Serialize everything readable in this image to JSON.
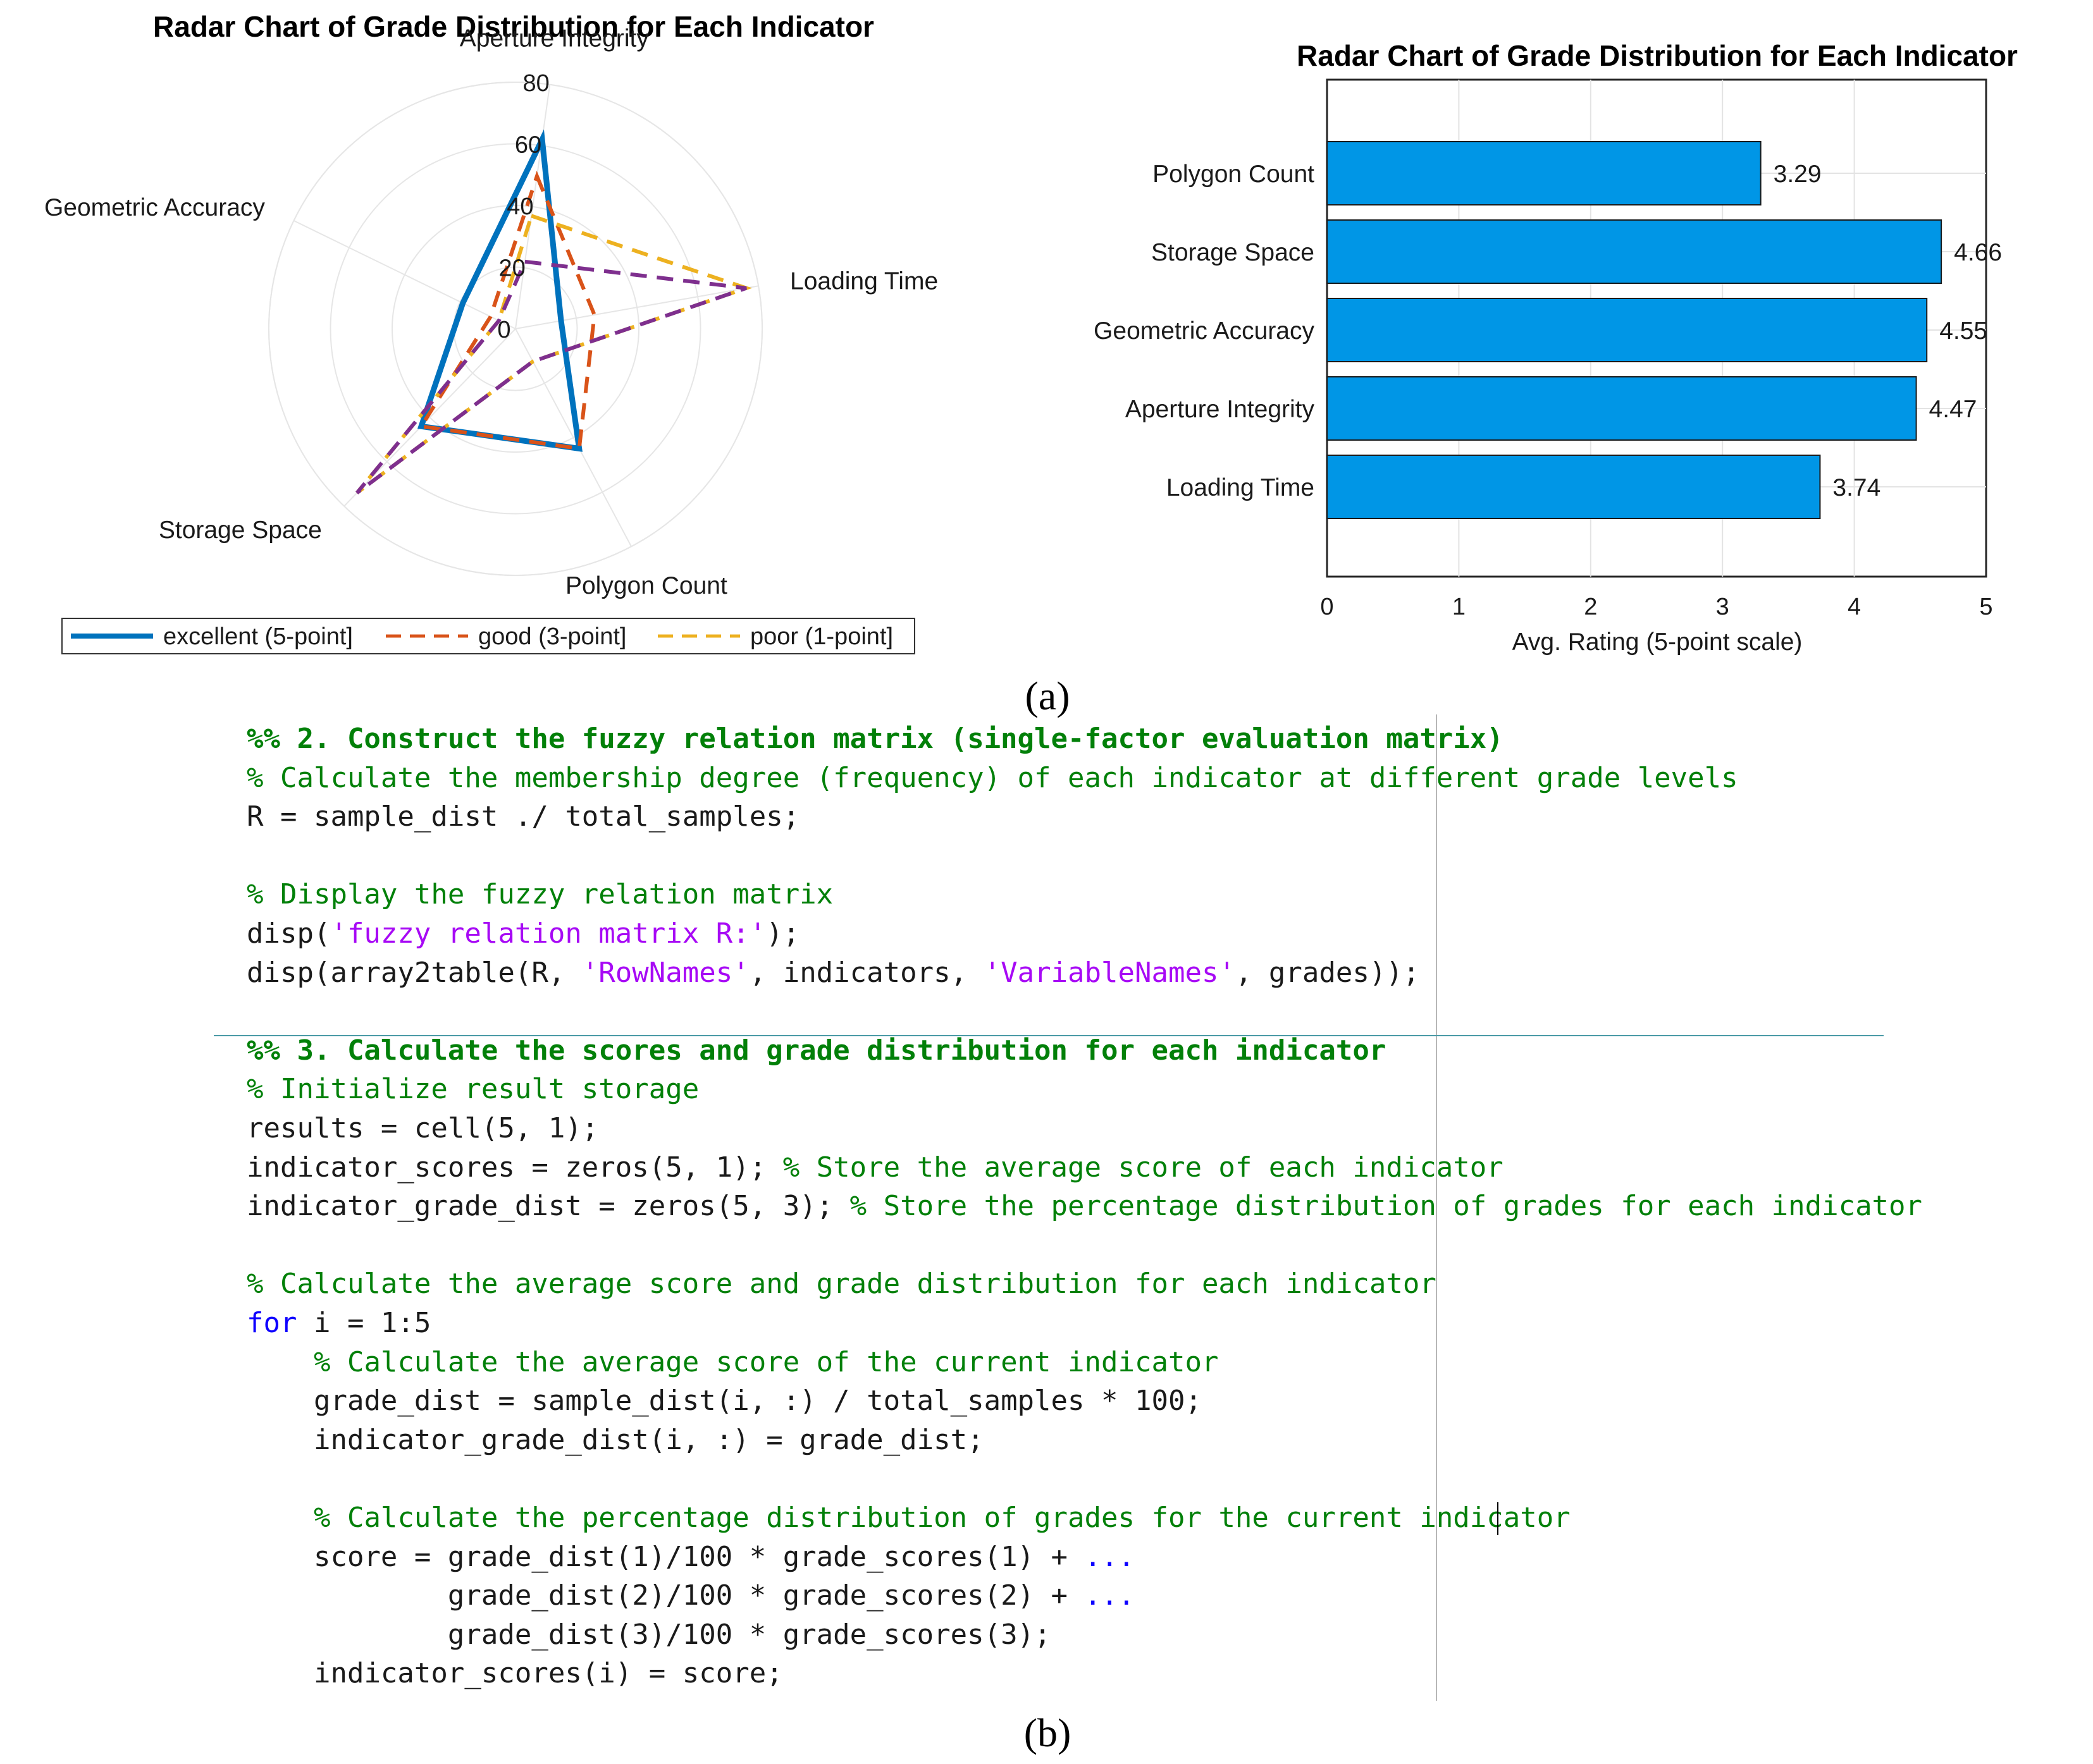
{
  "panel_a_label": "(a)",
  "panel_b_label": "(b)",
  "chart_data": [
    {
      "type": "radar",
      "title": "Radar Chart of Grade Distribution for Each Indicator",
      "axes": [
        "Aperture Integrity",
        "Loading Time",
        "Polygon Count",
        "Storage Space",
        "Geometric Accuracy"
      ],
      "rlim": [
        0,
        80
      ],
      "rticks": [
        0,
        20,
        40,
        60,
        80
      ],
      "rtick_labels": [
        "0",
        "20",
        "40",
        "60",
        "80"
      ],
      "grid": true,
      "legend_placement": "bottom",
      "series": [
        {
          "name": "excellent (5-point]",
          "values": [
            62,
            15,
            44,
            44,
            19
          ],
          "color": "#0072bd",
          "style": "solid"
        },
        {
          "name": "good (3-point]",
          "values": [
            50,
            26,
            44,
            44,
            9
          ],
          "color": "#d95319",
          "style": "dashed"
        },
        {
          "name": "poor (1-point]",
          "values": [
            37,
            76,
            12,
            74,
            6
          ],
          "color": "#edb120",
          "style": "dashed"
        },
        {
          "name": "",
          "values": [
            22,
            76,
            12,
            74,
            6
          ],
          "color": "#7e2f8e",
          "style": "dashed"
        }
      ]
    },
    {
      "type": "bar",
      "orientation": "horizontal",
      "title": "Radar Chart of Grade Distribution for Each Indicator",
      "categories": [
        "Loading Time",
        "Aperture Integrity",
        "Geometric Accuracy",
        "Storage Space",
        "Polygon Count"
      ],
      "values": [
        3.74,
        4.47,
        4.55,
        4.66,
        3.29
      ],
      "value_labels": [
        "3.74",
        "4.47",
        "4.55",
        "4.66",
        "3.29"
      ],
      "xlabel": "Avg. Rating (5-point scale)",
      "ylabel": "",
      "xlim": [
        0,
        5
      ],
      "xticks": [
        "0",
        "1",
        "2",
        "3",
        "4",
        "5"
      ],
      "grid": true,
      "bar_color": "#0096e6"
    }
  ],
  "code": {
    "lines": [
      {
        "indent": 0,
        "section": true,
        "parts": [
          {
            "t": "%% 2. Construct the fuzzy relation matrix (single-factor evaluation matrix)",
            "c": "cm"
          }
        ]
      },
      {
        "indent": 0,
        "parts": [
          {
            "t": "% Calculate the membership degree (frequency) of each indicator at different grade levels",
            "c": "cm"
          }
        ]
      },
      {
        "indent": 0,
        "parts": [
          {
            "t": "R = sample_dist ./ total_samples;",
            "c": ""
          }
        ]
      },
      {
        "indent": 0,
        "parts": []
      },
      {
        "indent": 0,
        "parts": [
          {
            "t": "% Display the fuzzy relation matrix",
            "c": "cm"
          }
        ]
      },
      {
        "indent": 0,
        "parts": [
          {
            "t": "disp(",
            "c": ""
          },
          {
            "t": "'fuzzy relation matrix R:'",
            "c": "st"
          },
          {
            "t": ");",
            "c": ""
          }
        ]
      },
      {
        "indent": 0,
        "parts": [
          {
            "t": "disp(array2table(R, ",
            "c": ""
          },
          {
            "t": "'RowNames'",
            "c": "st"
          },
          {
            "t": ", indicators, ",
            "c": ""
          },
          {
            "t": "'VariableNames'",
            "c": "st"
          },
          {
            "t": ", grades));",
            "c": ""
          }
        ]
      },
      {
        "indent": 0,
        "parts": []
      },
      {
        "indent": 0,
        "section": true,
        "parts": [
          {
            "t": "%% 3. Calculate the scores and grade distribution for each indicator",
            "c": "cm"
          }
        ]
      },
      {
        "indent": 0,
        "parts": [
          {
            "t": "% Initialize result storage",
            "c": "cm"
          }
        ]
      },
      {
        "indent": 0,
        "parts": [
          {
            "t": "results = cell(5, 1);",
            "c": ""
          }
        ]
      },
      {
        "indent": 0,
        "parts": [
          {
            "t": "indicator_scores = zeros(5, 1); ",
            "c": ""
          },
          {
            "t": "% Store the average score of each indicator",
            "c": "cm"
          }
        ]
      },
      {
        "indent": 0,
        "parts": [
          {
            "t": "indicator_grade_dist = zeros(5, 3); ",
            "c": ""
          },
          {
            "t": "% Store the percentage distribution of grades for each indicator",
            "c": "cm"
          }
        ]
      },
      {
        "indent": 0,
        "parts": []
      },
      {
        "indent": 0,
        "parts": [
          {
            "t": "% Calculate the average score and grade distribution for each indicator",
            "c": "cm"
          }
        ]
      },
      {
        "indent": 0,
        "parts": [
          {
            "t": "for",
            "c": "kw"
          },
          {
            "t": " i = 1:5",
            "c": ""
          }
        ]
      },
      {
        "indent": 4,
        "parts": [
          {
            "t": "% Calculate the average score of the current indicator",
            "c": "cm"
          }
        ]
      },
      {
        "indent": 4,
        "parts": [
          {
            "t": "grade_dist = sample_dist(i, :) / total_samples * 100;",
            "c": ""
          }
        ]
      },
      {
        "indent": 4,
        "parts": [
          {
            "t": "indicator_grade_dist(i, :) = grade_dist;",
            "c": ""
          }
        ]
      },
      {
        "indent": 0,
        "parts": []
      },
      {
        "indent": 4,
        "parts": [
          {
            "t": "% Calculate the percentage distribution of grades for the current indicator",
            "c": "cm"
          }
        ]
      },
      {
        "indent": 4,
        "parts": [
          {
            "t": "score = grade_dist(1)/100 * grade_scores(1) + ",
            "c": ""
          },
          {
            "t": "...",
            "c": "kw"
          }
        ]
      },
      {
        "indent": 12,
        "parts": [
          {
            "t": "grade_dist(2)/100 * grade_scores(2) + ",
            "c": ""
          },
          {
            "t": "...",
            "c": "kw"
          }
        ]
      },
      {
        "indent": 12,
        "parts": [
          {
            "t": "grade_dist(3)/100 * grade_scores(3);",
            "c": ""
          }
        ]
      },
      {
        "indent": 4,
        "parts": [
          {
            "t": "indicator_scores(i) = score;",
            "c": ""
          }
        ]
      }
    ]
  }
}
